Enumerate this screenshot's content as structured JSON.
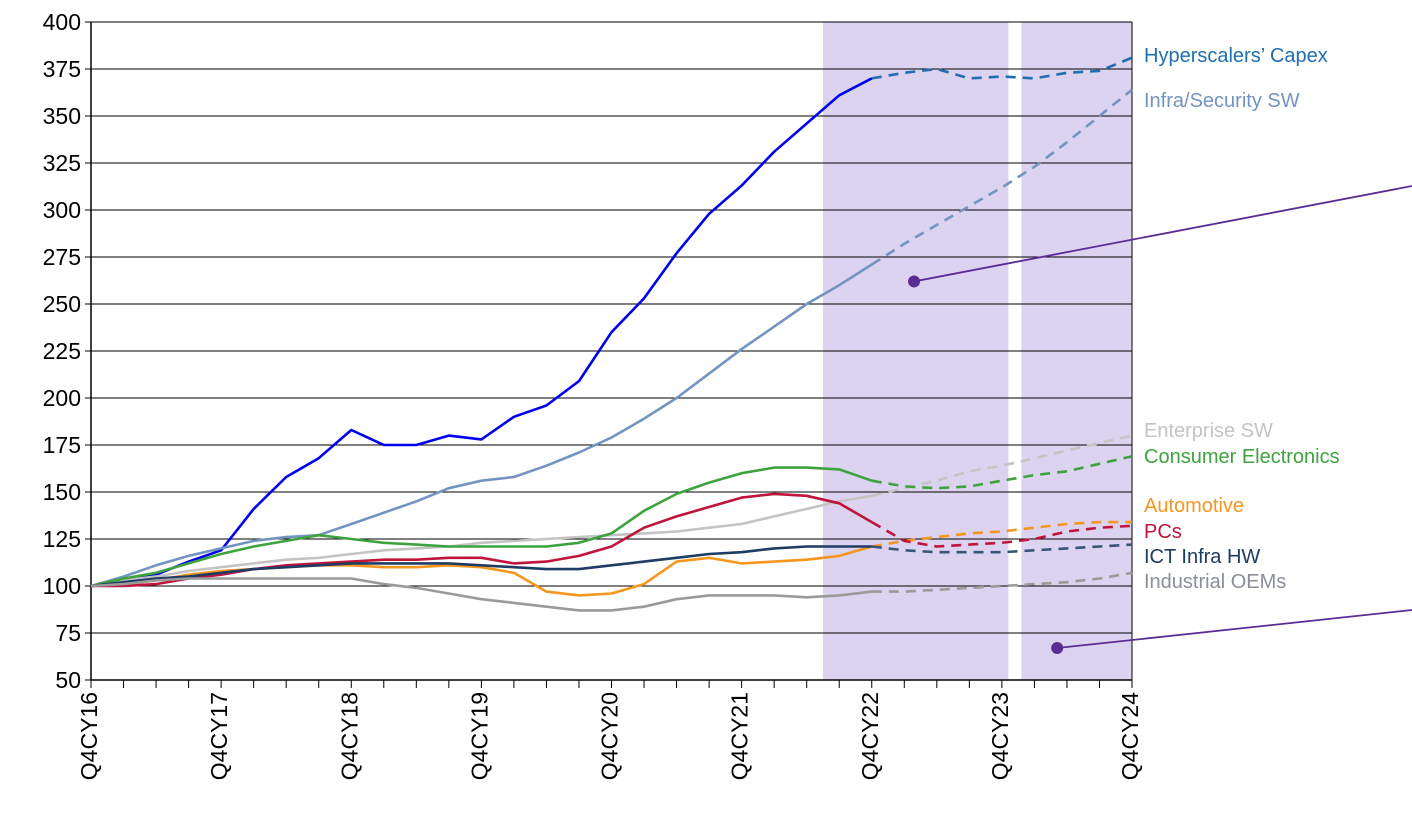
{
  "chart_data": {
    "type": "line",
    "x": [
      "Q4CY16",
      "Q1CY17",
      "Q2CY17",
      "Q3CY17",
      "Q4CY17",
      "Q1CY18",
      "Q2CY18",
      "Q3CY18",
      "Q4CY18",
      "Q1CY19",
      "Q2CY19",
      "Q3CY19",
      "Q4CY19",
      "Q1CY20",
      "Q2CY20",
      "Q3CY20",
      "Q4CY20",
      "Q1CY21",
      "Q2CY21",
      "Q3CY21",
      "Q4CY21",
      "Q1CY22",
      "Q2CY22",
      "Q3CY22",
      "Q4CY22",
      "Q1CY23",
      "Q2CY23",
      "Q3CY23",
      "Q4CY23",
      "Q1CY24",
      "Q2CY24",
      "Q3CY24",
      "Q4CY24"
    ],
    "x_tick_labels": [
      "Q4CY16",
      "Q4CY17",
      "Q4CY18",
      "Q4CY19",
      "Q4CY20",
      "Q4CY21",
      "Q4CY22",
      "Q4CY23",
      "Q4CY24"
    ],
    "ylim": [
      50,
      400
    ],
    "y_ticks": [
      50,
      75,
      100,
      125,
      150,
      175,
      200,
      225,
      250,
      275,
      300,
      325,
      350,
      375,
      400
    ],
    "grid": "horizontal",
    "forecast_start": "Q4CY22",
    "shaded_regions": [
      {
        "from": 22.5,
        "to": 28.2
      },
      {
        "from": 28.6,
        "to": 32.0
      }
    ],
    "annotations": [
      {
        "x": 25.3,
        "y": 262
      },
      {
        "x": 29.7,
        "y": 67
      }
    ],
    "series": [
      {
        "name": "Hyperscalers’ Capex",
        "color": "#0000ee",
        "forecast_color": "#1f6fb2",
        "values": [
          100,
          103,
          106,
          113,
          119,
          141,
          158,
          168,
          183,
          175,
          175,
          180,
          178,
          190,
          196,
          209,
          235,
          253,
          277,
          298,
          313,
          331,
          346,
          361,
          370,
          373,
          375,
          370,
          371,
          370,
          373,
          374,
          381
        ]
      },
      {
        "name": "Infra/Security SW",
        "color": "#7394c1",
        "forecast_color": "#7394c1",
        "values": [
          100,
          105,
          111,
          116,
          120,
          124,
          126,
          127,
          133,
          139,
          145,
          152,
          156,
          158,
          164,
          171,
          179,
          189,
          200,
          213,
          226,
          238,
          250,
          260,
          271,
          282,
          292,
          302,
          312,
          323,
          336,
          350,
          364
        ]
      },
      {
        "name": "Enterprise SW",
        "color": "#c4c4c4",
        "forecast_color": "#c4c4c4",
        "values": [
          100,
          103,
          105,
          108,
          110,
          112,
          114,
          115,
          117,
          119,
          120,
          121,
          123,
          124,
          125,
          126,
          127,
          128,
          129,
          131,
          133,
          137,
          141,
          145,
          148,
          152,
          156,
          161,
          164,
          168,
          172,
          176,
          180
        ]
      },
      {
        "name": "Consumer Electronics",
        "color": "#3ea33e",
        "forecast_color": "#3ea33e",
        "values": [
          100,
          104,
          107,
          112,
          117,
          121,
          124,
          127,
          125,
          123,
          122,
          121,
          121,
          121,
          121,
          123,
          128,
          140,
          149,
          155,
          160,
          163,
          163,
          162,
          156,
          153,
          152,
          153,
          156,
          159,
          161,
          165,
          169
        ]
      },
      {
        "name": "Automotive",
        "color": "#f5961e",
        "forecast_color": "#f5961e",
        "values": [
          100,
          101,
          103,
          106,
          108,
          109,
          110,
          111,
          111,
          110,
          110,
          111,
          110,
          107,
          97,
          95,
          96,
          101,
          113,
          115,
          112,
          113,
          114,
          116,
          121,
          124,
          126,
          128,
          129,
          131,
          133,
          134,
          134
        ]
      },
      {
        "name": "PCs",
        "color": "#c0143c",
        "forecast_color": "#c0143c",
        "values": [
          100,
          100,
          101,
          104,
          106,
          109,
          111,
          112,
          113,
          114,
          114,
          115,
          115,
          112,
          113,
          116,
          121,
          131,
          137,
          142,
          147,
          149,
          148,
          144,
          134,
          124,
          121,
          122,
          123,
          125,
          129,
          131,
          132
        ]
      },
      {
        "name": "ICT Infra HW",
        "color": "#1e3c64",
        "forecast_color": "#3b5478",
        "values": [
          100,
          102,
          104,
          105,
          107,
          109,
          110,
          111,
          112,
          112,
          112,
          112,
          111,
          110,
          109,
          109,
          111,
          113,
          115,
          117,
          118,
          120,
          121,
          121,
          121,
          119,
          118,
          118,
          118,
          119,
          120,
          121,
          122
        ]
      },
      {
        "name": "Industrial OEMs",
        "color": "#9a9a9a",
        "forecast_color": "#9a9a9a",
        "values": [
          100,
          101,
          103,
          104,
          104,
          104,
          104,
          104,
          104,
          101,
          99,
          96,
          93,
          91,
          89,
          87,
          87,
          89,
          93,
          95,
          95,
          95,
          94,
          95,
          97,
          97,
          98,
          99,
          100,
          101,
          102,
          104,
          107
        ]
      }
    ]
  },
  "labels": {
    "hyperscalers": {
      "text": "Hyperscalers’ Capex",
      "color": "#1f6fb2"
    },
    "infra_security_sw": {
      "text": "Infra/Security SW",
      "color": "#7394c1"
    },
    "enterprise_sw": {
      "text": "Enterprise SW",
      "color": "#c4c4c4"
    },
    "consumer_electronics": {
      "text": "Consumer Electronics",
      "color": "#3ea33e"
    },
    "automotive": {
      "text": "Automotive",
      "color": "#f5961e"
    },
    "pcs": {
      "text": "PCs",
      "color": "#c0143c"
    },
    "ict_infra_hw": {
      "text": "ICT Infra HW",
      "color": "#1e3c64"
    },
    "industrial_oems": {
      "text": "Industrial OEMs",
      "color": "#8a8f98"
    }
  },
  "colors": {
    "shading": "#dcd3f0",
    "annotation": "#5a2d96"
  }
}
